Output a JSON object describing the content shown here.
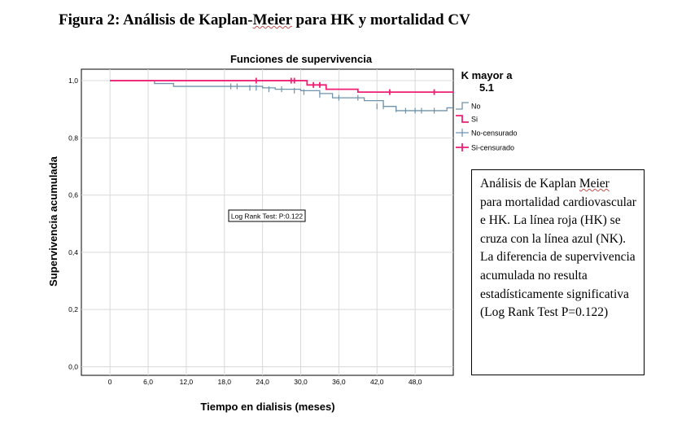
{
  "figure": {
    "title_pre": "Figura 2: Análisis de Kaplan-",
    "title_underlined": "Meier",
    "title_post": " para HK y mortalidad  CV"
  },
  "note": {
    "line1_pre": "Análisis de Kaplan ",
    "line1_underlined": "Meier",
    "text_rest": "para mortalidad cardiovascular e HK. La línea roja (HK) se cruza con la línea azul (NK). La diferencia de supervivencia acumulada no resulta estadísticamente significativa (Log Rank Test P=0.122)"
  },
  "chart_data": {
    "type": "line",
    "title": "Funciones de supervivencia",
    "xlabel": "Tiempo en dialisis (meses)",
    "ylabel": "Supervivencia acumulada",
    "xlim": [
      -4.5,
      54
    ],
    "ylim": [
      -0.03,
      1.04
    ],
    "x_ticks": [
      "0",
      "6,0",
      "12,0",
      "18,0",
      "24,0",
      "30,0",
      "36,0",
      "42,0",
      "48,0"
    ],
    "y_ticks": [
      "0,0",
      "0,2",
      "0,4",
      "0,6",
      "0,8",
      "1,0"
    ],
    "grid": true,
    "legend": {
      "title_line1": "K mayor a",
      "title_line2": "5.1",
      "position": "top-right",
      "entries": [
        "No",
        "Si",
        "No-censurado",
        "Si-censurado"
      ]
    },
    "annotation": "Log Rank Test: P:0.122",
    "colors": {
      "No": "#6e93ad",
      "Si": "#ef1f74"
    },
    "series": [
      {
        "name": "No",
        "steps": [
          [
            0,
            1.0
          ],
          [
            7,
            0.99
          ],
          [
            10,
            0.98
          ],
          [
            24,
            0.975
          ],
          [
            26,
            0.97
          ],
          [
            30,
            0.965
          ],
          [
            33,
            0.955
          ],
          [
            35,
            0.94
          ],
          [
            40,
            0.93
          ],
          [
            43,
            0.91
          ],
          [
            45,
            0.895
          ],
          [
            53,
            0.895
          ],
          [
            53,
            0.905
          ],
          [
            54,
            0.905
          ]
        ],
        "censored": [
          [
            19,
            0.98
          ],
          [
            20,
            0.98
          ],
          [
            22,
            0.975
          ],
          [
            23,
            0.975
          ],
          [
            25,
            0.97
          ],
          [
            27,
            0.97
          ],
          [
            29,
            0.965
          ],
          [
            30.5,
            0.96
          ],
          [
            33,
            0.95
          ],
          [
            36,
            0.94
          ],
          [
            39,
            0.94
          ],
          [
            42,
            0.91
          ],
          [
            43,
            0.91
          ],
          [
            45,
            0.9
          ],
          [
            46.5,
            0.895
          ],
          [
            48,
            0.895
          ],
          [
            49,
            0.895
          ],
          [
            51,
            0.895
          ]
        ]
      },
      {
        "name": "Si",
        "steps": [
          [
            0,
            1.0
          ],
          [
            31,
            1.0
          ],
          [
            31,
            0.985
          ],
          [
            34,
            0.985
          ],
          [
            34,
            0.97
          ],
          [
            39,
            0.97
          ],
          [
            39,
            0.96
          ],
          [
            54,
            0.96
          ]
        ],
        "censored": [
          [
            23,
            1.0
          ],
          [
            28.5,
            1.0
          ],
          [
            29,
            1.0
          ],
          [
            32,
            0.985
          ],
          [
            33,
            0.985
          ],
          [
            44,
            0.96
          ],
          [
            51,
            0.96
          ]
        ]
      }
    ]
  }
}
